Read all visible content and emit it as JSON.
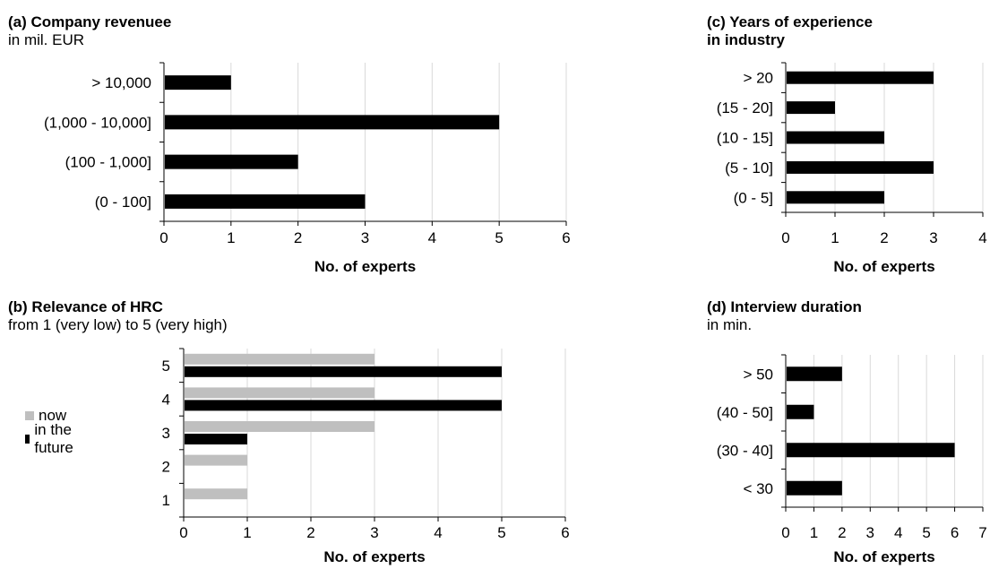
{
  "colors": {
    "future": "#000000",
    "now": "#bfbfbf",
    "grid": "#d9d9d9",
    "axis": "#000000"
  },
  "chart_data": [
    {
      "id": "a",
      "type": "bar",
      "orientation": "horizontal",
      "title": "(a) Company revenuee",
      "subtitle": "in mil. EUR",
      "xlabel": "No. of experts",
      "categories": [
        "> 10,000",
        "(1,000 - 10,000]",
        "(100 - 1,000]",
        "(0 - 100]"
      ],
      "series": [
        {
          "values": [
            1,
            5,
            2,
            3
          ],
          "color": "#000000"
        }
      ],
      "xlim": [
        0,
        6
      ],
      "xticks": [
        "0",
        "1",
        "2",
        "3",
        "4",
        "5",
        "6"
      ],
      "grid": true
    },
    {
      "id": "c",
      "type": "bar",
      "orientation": "horizontal",
      "title": "(c) Years of experience",
      "subtitle": "in industry",
      "subtitle_bold": true,
      "xlabel": "No. of experts",
      "categories": [
        "> 20",
        "(15 - 20]",
        "(10 - 15]",
        "(5 - 10]",
        "(0 - 5]"
      ],
      "series": [
        {
          "values": [
            3,
            1,
            2,
            3,
            2
          ],
          "color": "#000000"
        }
      ],
      "xlim": [
        0,
        4
      ],
      "xticks": [
        "0",
        "1",
        "2",
        "3",
        "4"
      ],
      "grid": true
    },
    {
      "id": "b",
      "type": "bar",
      "orientation": "horizontal",
      "title": "(b) Relevance of HRC",
      "subtitle": "from 1 (very low) to 5 (very high)",
      "xlabel": "No. of experts",
      "categories": [
        "5",
        "4",
        "3",
        "2",
        "1"
      ],
      "series": [
        {
          "name": "now",
          "values": [
            3,
            3,
            3,
            1,
            1
          ],
          "color": "#bfbfbf"
        },
        {
          "name": "in the future",
          "values": [
            5,
            5,
            1,
            0,
            0
          ],
          "color": "#000000"
        }
      ],
      "legend": "left",
      "xlim": [
        0,
        6
      ],
      "xticks": [
        "0",
        "1",
        "2",
        "3",
        "4",
        "5",
        "6"
      ],
      "grid": true
    },
    {
      "id": "d",
      "type": "bar",
      "orientation": "horizontal",
      "title": "(d) Interview duration",
      "subtitle": "in min.",
      "xlabel": "No. of experts",
      "categories": [
        "> 50",
        "(40 - 50]",
        "(30 - 40]",
        "< 30"
      ],
      "series": [
        {
          "values": [
            2,
            1,
            6,
            2
          ],
          "color": "#000000"
        }
      ],
      "xlim": [
        0,
        7
      ],
      "xticks": [
        "0",
        "1",
        "2",
        "3",
        "4",
        "5",
        "6",
        "7"
      ],
      "grid": true
    }
  ]
}
